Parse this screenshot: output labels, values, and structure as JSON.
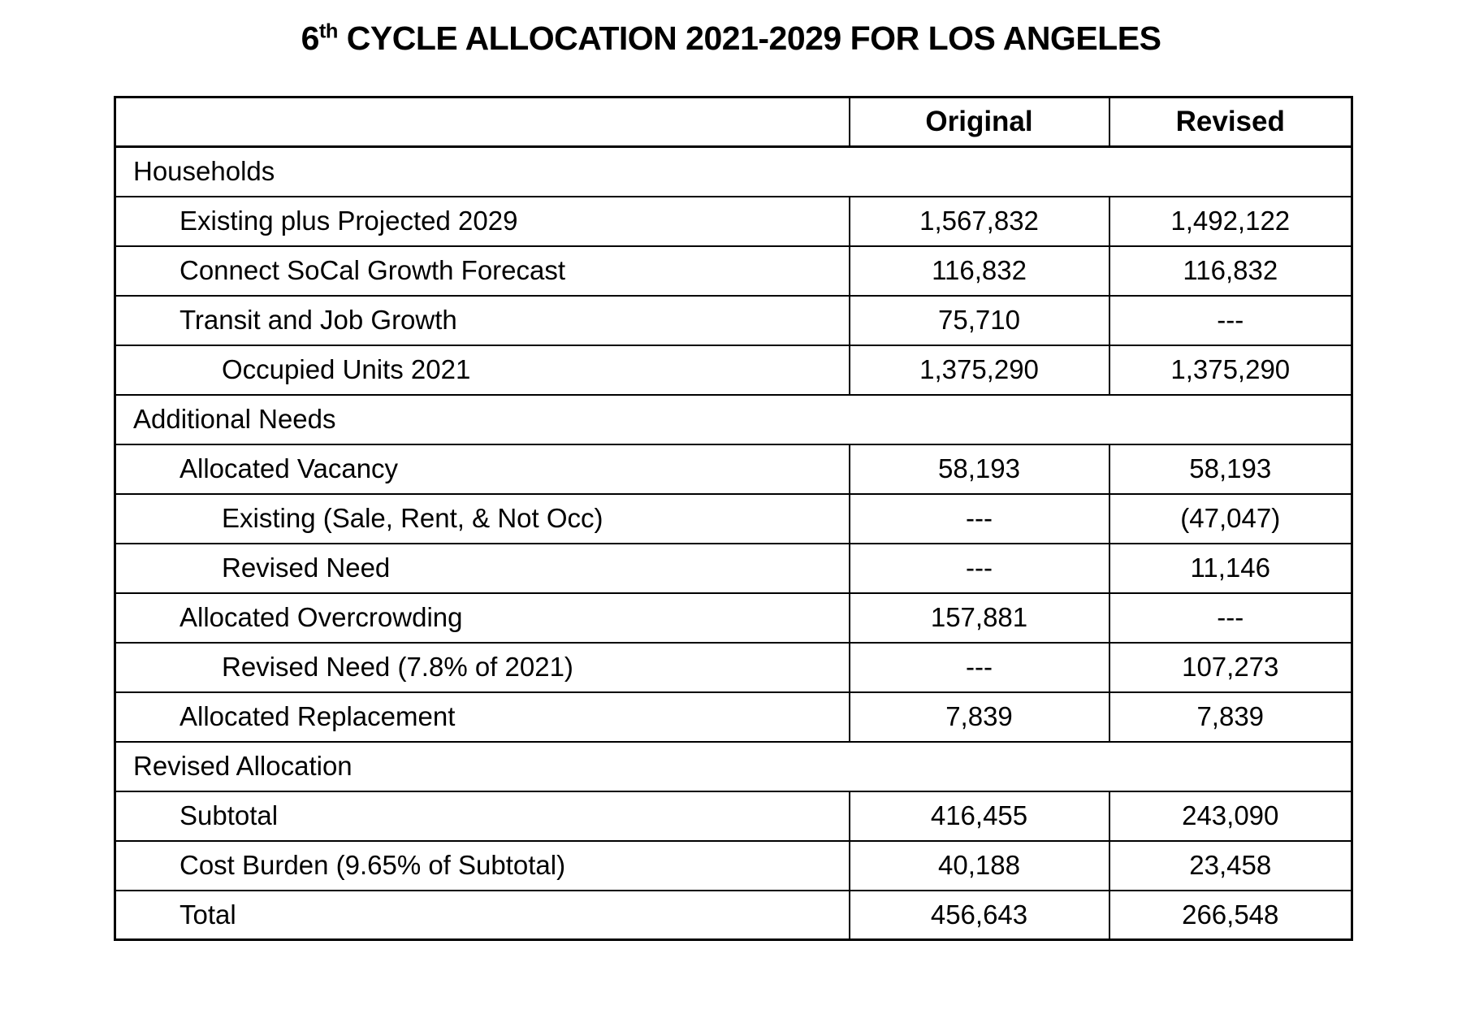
{
  "title": {
    "prefix": "6",
    "superscript": "th",
    "rest": " CYCLE ALLOCATION 2021-2029 FOR LOS ANGELES"
  },
  "chart_data": {
    "type": "table",
    "title": "6th CYCLE ALLOCATION 2021-2029 FOR LOS ANGELES",
    "columns": [
      "",
      "Original",
      "Revised"
    ],
    "rows": [
      {
        "label": "Households",
        "section": true
      },
      {
        "label": "Existing plus Projected 2029",
        "indent": 1,
        "original": "1,567,832",
        "revised": "1,492,122"
      },
      {
        "label": "Connect SoCal Growth Forecast",
        "indent": 1,
        "original": "116,832",
        "revised": "116,832"
      },
      {
        "label": "Transit and Job Growth",
        "indent": 1,
        "original": "75,710",
        "revised": "---"
      },
      {
        "label": "Occupied Units 2021",
        "indent": 2,
        "original": "1,375,290",
        "revised": "1,375,290"
      },
      {
        "label": "Additional Needs",
        "section": true
      },
      {
        "label": "Allocated Vacancy",
        "indent": 1,
        "original": "58,193",
        "revised": "58,193"
      },
      {
        "label": "Existing (Sale, Rent, & Not Occ)",
        "indent": 2,
        "original": "---",
        "revised": "(47,047)"
      },
      {
        "label": "Revised Need",
        "indent": 2,
        "original": "---",
        "revised": "11,146"
      },
      {
        "label": "Allocated Overcrowding",
        "indent": 1,
        "original": "157,881",
        "revised": "---"
      },
      {
        "label": "Revised Need (7.8% of 2021)",
        "indent": 2,
        "original": "---",
        "revised": "107,273"
      },
      {
        "label": "Allocated Replacement",
        "indent": 1,
        "original": "7,839",
        "revised": "7,839"
      },
      {
        "label": "Revised Allocation",
        "section": true
      },
      {
        "label": "Subtotal",
        "indent": 1,
        "original": "416,455",
        "revised": "243,090"
      },
      {
        "label": "Cost Burden (9.65% of Subtotal)",
        "indent": 1,
        "original": "40,188",
        "revised": "23,458"
      },
      {
        "label": "Total",
        "indent": 1,
        "original": "456,643",
        "revised": "266,548"
      }
    ],
    "layout": {
      "grid": "full black borders",
      "header_style": "bold",
      "value_alignment": "center",
      "background": "#ffffff",
      "text_color": "#000000"
    }
  }
}
